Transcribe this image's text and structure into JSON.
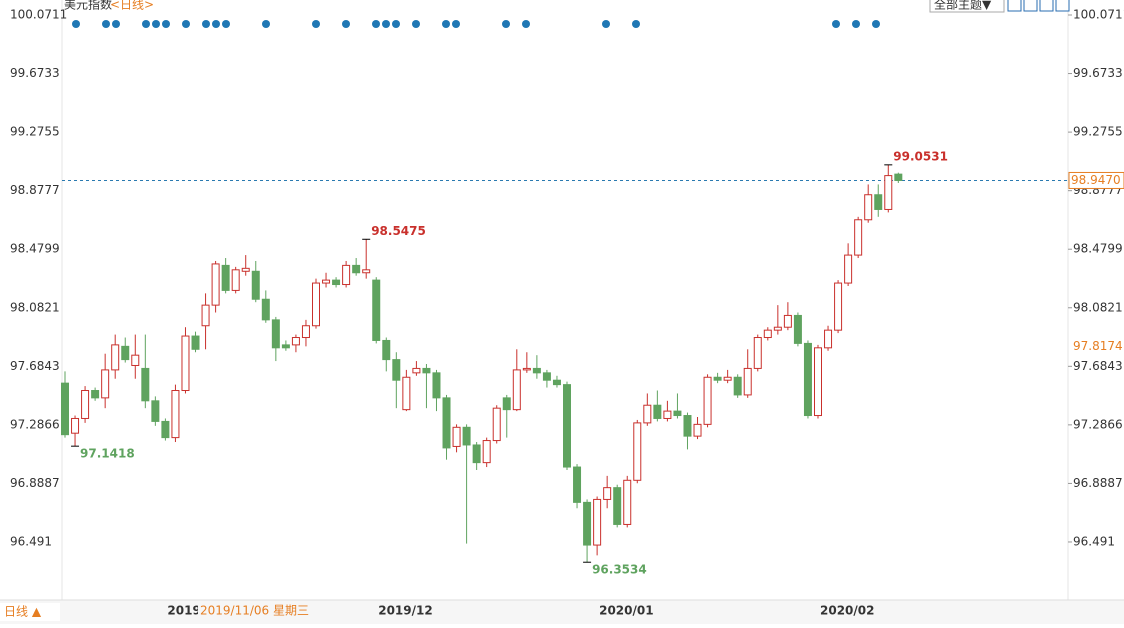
{
  "chart_data": {
    "type": "candlestick",
    "title": "美元指数",
    "subtitle": "<日线>",
    "period_button": "日线 ▲",
    "theme_button": "全部主题▼",
    "cursor_date": "2019/11/06 星期三",
    "cursor_price": 97.8174,
    "last_price": {
      "value": 98.947,
      "label": "98.9470"
    },
    "categories": [
      null,
      null,
      null,
      null,
      null,
      null,
      null,
      null,
      null,
      null,
      "2019/",
      null,
      null,
      null,
      null,
      null,
      null,
      null,
      null,
      null,
      null,
      null,
      null,
      null,
      null,
      null,
      null,
      null,
      null,
      null,
      null,
      "2019/12",
      null,
      null,
      null,
      null,
      null,
      null,
      null,
      null,
      null,
      null,
      null,
      null,
      null,
      null,
      null,
      null,
      null,
      null,
      null,
      null,
      null,
      "2020/01",
      null,
      null,
      null,
      null,
      null,
      null,
      null,
      null,
      null,
      null,
      null,
      null,
      null,
      null,
      null,
      null,
      null,
      null,
      null,
      null,
      null,
      "2020/02",
      null,
      null,
      null,
      null,
      null,
      null,
      null,
      null
    ],
    "open": [
      97.57,
      97.23,
      97.33,
      97.52,
      97.47,
      97.66,
      97.82,
      97.69,
      97.67,
      97.45,
      97.31,
      97.2,
      97.52,
      97.89,
      97.96,
      98.1,
      98.37,
      98.2,
      98.33,
      98.33,
      98.14,
      98.0,
      97.83,
      97.83,
      97.88,
      97.96,
      98.25,
      98.27,
      98.24,
      98.37,
      98.32,
      98.27,
      97.86,
      97.73,
      97.39,
      97.64,
      97.67,
      97.64,
      97.47,
      97.14,
      97.27,
      97.15,
      97.03,
      97.18,
      97.47,
      97.39,
      97.66,
      97.67,
      97.64,
      97.59,
      97.56,
      97.0,
      96.76,
      96.47,
      96.78,
      96.86,
      96.61,
      96.91,
      97.3,
      97.42,
      97.33,
      97.38,
      97.35,
      97.21,
      97.29,
      97.61,
      97.59,
      97.61,
      97.49,
      97.67,
      97.88,
      97.93,
      97.95,
      98.03,
      97.84,
      97.35,
      97.81,
      97.93,
      98.25,
      98.44,
      98.68,
      98.85,
      98.75,
      98.99
    ],
    "close": [
      97.22,
      97.33,
      97.52,
      97.47,
      97.66,
      97.83,
      97.73,
      97.76,
      97.45,
      97.31,
      97.2,
      97.52,
      97.89,
      97.8,
      98.1,
      98.38,
      98.2,
      98.34,
      98.35,
      98.14,
      98.0,
      97.81,
      97.81,
      97.88,
      97.96,
      98.25,
      98.27,
      98.24,
      98.37,
      98.32,
      98.34,
      97.86,
      97.73,
      97.59,
      97.61,
      97.67,
      97.64,
      97.47,
      97.13,
      97.27,
      97.15,
      97.03,
      97.18,
      97.4,
      97.39,
      97.66,
      97.67,
      97.64,
      97.59,
      97.56,
      97.0,
      96.76,
      96.47,
      96.78,
      96.86,
      96.61,
      96.91,
      97.3,
      97.42,
      97.33,
      97.38,
      97.35,
      97.21,
      97.29,
      97.61,
      97.59,
      97.61,
      97.49,
      97.67,
      97.88,
      97.93,
      97.95,
      98.03,
      97.84,
      97.35,
      97.81,
      97.93,
      98.25,
      98.44,
      98.68,
      98.85,
      98.75,
      98.98,
      98.947
    ],
    "high": [
      97.65,
      97.35,
      97.55,
      97.54,
      97.77,
      97.9,
      97.88,
      97.9,
      97.9,
      97.48,
      97.33,
      97.56,
      97.95,
      97.92,
      98.18,
      98.4,
      98.42,
      98.36,
      98.44,
      98.4,
      98.2,
      98.02,
      97.86,
      97.9,
      98.0,
      98.28,
      98.32,
      98.29,
      98.4,
      98.42,
      98.5475,
      98.29,
      97.88,
      97.78,
      97.66,
      97.72,
      97.7,
      97.66,
      97.49,
      97.29,
      97.29,
      97.17,
      97.2,
      97.42,
      97.49,
      97.8,
      97.78,
      97.76,
      97.66,
      97.62,
      97.58,
      97.02,
      96.78,
      96.8,
      96.94,
      96.88,
      96.94,
      97.32,
      97.5,
      97.52,
      97.45,
      97.5,
      97.37,
      97.34,
      97.63,
      97.64,
      97.66,
      97.63,
      97.8,
      97.9,
      97.95,
      98.1,
      98.12,
      98.05,
      97.86,
      97.83,
      97.96,
      98.27,
      98.52,
      98.7,
      98.92,
      98.92,
      99.0531,
      99.0
    ],
    "low": [
      97.2,
      97.1418,
      97.3,
      97.45,
      97.4,
      97.6,
      97.71,
      97.6,
      97.4,
      97.28,
      97.18,
      97.17,
      97.5,
      97.78,
      97.8,
      98.05,
      98.18,
      98.18,
      98.3,
      98.12,
      97.98,
      97.72,
      97.79,
      97.78,
      97.82,
      97.94,
      98.22,
      98.22,
      98.22,
      98.3,
      98.28,
      97.84,
      97.65,
      97.4,
      97.38,
      97.62,
      97.4,
      97.38,
      97.05,
      97.1,
      96.48,
      96.98,
      97.0,
      97.16,
      97.2,
      97.38,
      97.64,
      97.6,
      97.54,
      97.54,
      96.98,
      96.72,
      96.3534,
      96.4,
      96.72,
      96.59,
      96.59,
      96.89,
      97.28,
      97.31,
      97.31,
      97.33,
      97.12,
      97.19,
      97.27,
      97.57,
      97.57,
      97.47,
      97.47,
      97.65,
      97.86,
      97.9,
      97.93,
      97.82,
      97.33,
      97.33,
      97.79,
      97.91,
      98.23,
      98.42,
      98.66,
      98.7,
      98.73,
      98.93
    ],
    "up_color": "#c9302c",
    "down_color": "#5fa35f",
    "ylim": [
      96.2,
      100.15
    ],
    "yticks": [
      100.0711,
      99.6733,
      99.2755,
      98.8777,
      98.4799,
      98.0821,
      97.6843,
      97.2866,
      96.8887,
      96.491
    ],
    "ytick_labels_note": null
  }
}
